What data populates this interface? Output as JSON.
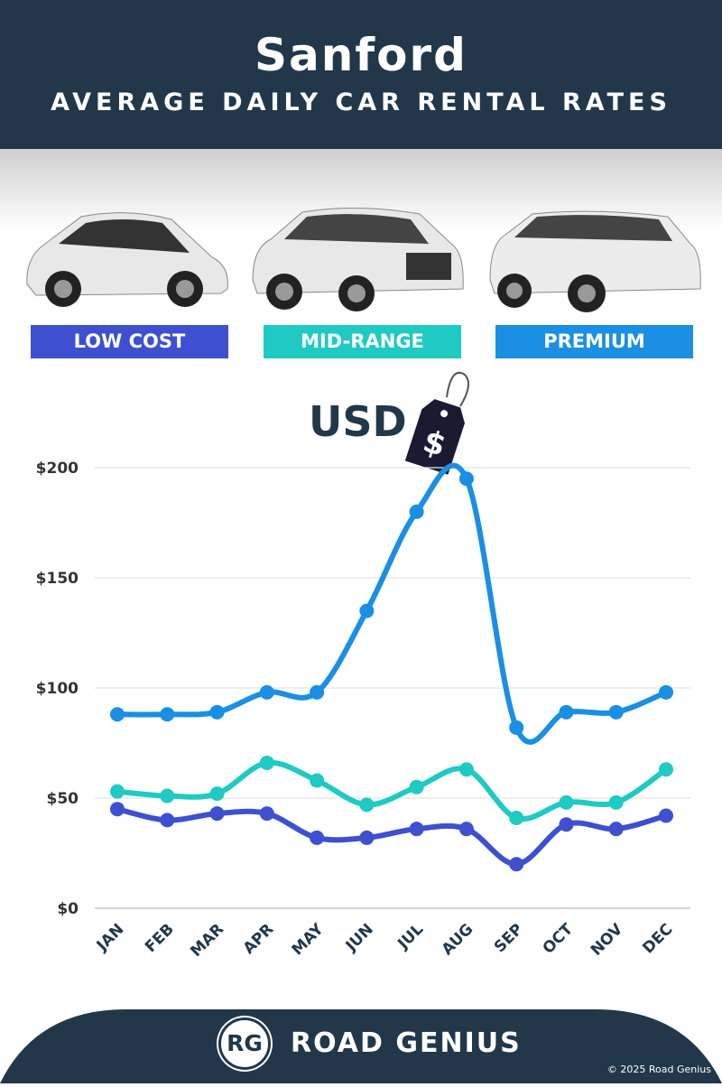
{
  "header": {
    "title": "Sanford",
    "subtitle": "AVERAGE DAILY CAR RENTAL RATES"
  },
  "categories_labels": [
    "LOW COST",
    "MID-RANGE",
    "PREMIUM"
  ],
  "currency": {
    "label": "USD",
    "tag_symbol": "$"
  },
  "chart_data": {
    "type": "line",
    "title": "",
    "xlabel": "",
    "ylabel": "",
    "ylim": [
      0,
      200
    ],
    "grid": true,
    "legend": "top (category labels above chart)",
    "categories": [
      "JAN",
      "FEB",
      "MAR",
      "APR",
      "MAY",
      "JUN",
      "JUL",
      "AUG",
      "SEP",
      "OCT",
      "NOV",
      "DEC"
    ],
    "yticks": [
      "$0",
      "$50",
      "$100",
      "$150",
      "$200"
    ],
    "ytick_values": [
      0,
      50,
      100,
      150,
      200
    ],
    "series": [
      {
        "name": "PREMIUM",
        "color": "#1a8fe3",
        "values": [
          88,
          88,
          89,
          98,
          98,
          135,
          180,
          195,
          82,
          89,
          89,
          98
        ]
      },
      {
        "name": "MID-RANGE",
        "color": "#1fcac4",
        "values": [
          53,
          51,
          52,
          66,
          58,
          47,
          55,
          63,
          41,
          48,
          48,
          63
        ]
      },
      {
        "name": "LOW COST",
        "color": "#3e50d0",
        "values": [
          45,
          40,
          43,
          43,
          32,
          32,
          36,
          36,
          20,
          38,
          36,
          42
        ]
      }
    ]
  },
  "colors": {
    "header": "#22374a",
    "low_cost": "#3e50d0",
    "mid_range": "#1fcac4",
    "premium": "#1a8fe3"
  },
  "footer": {
    "logo_initials": "RG",
    "brand": "ROAD GENIUS",
    "copyright": "© 2025 Road Genius"
  }
}
